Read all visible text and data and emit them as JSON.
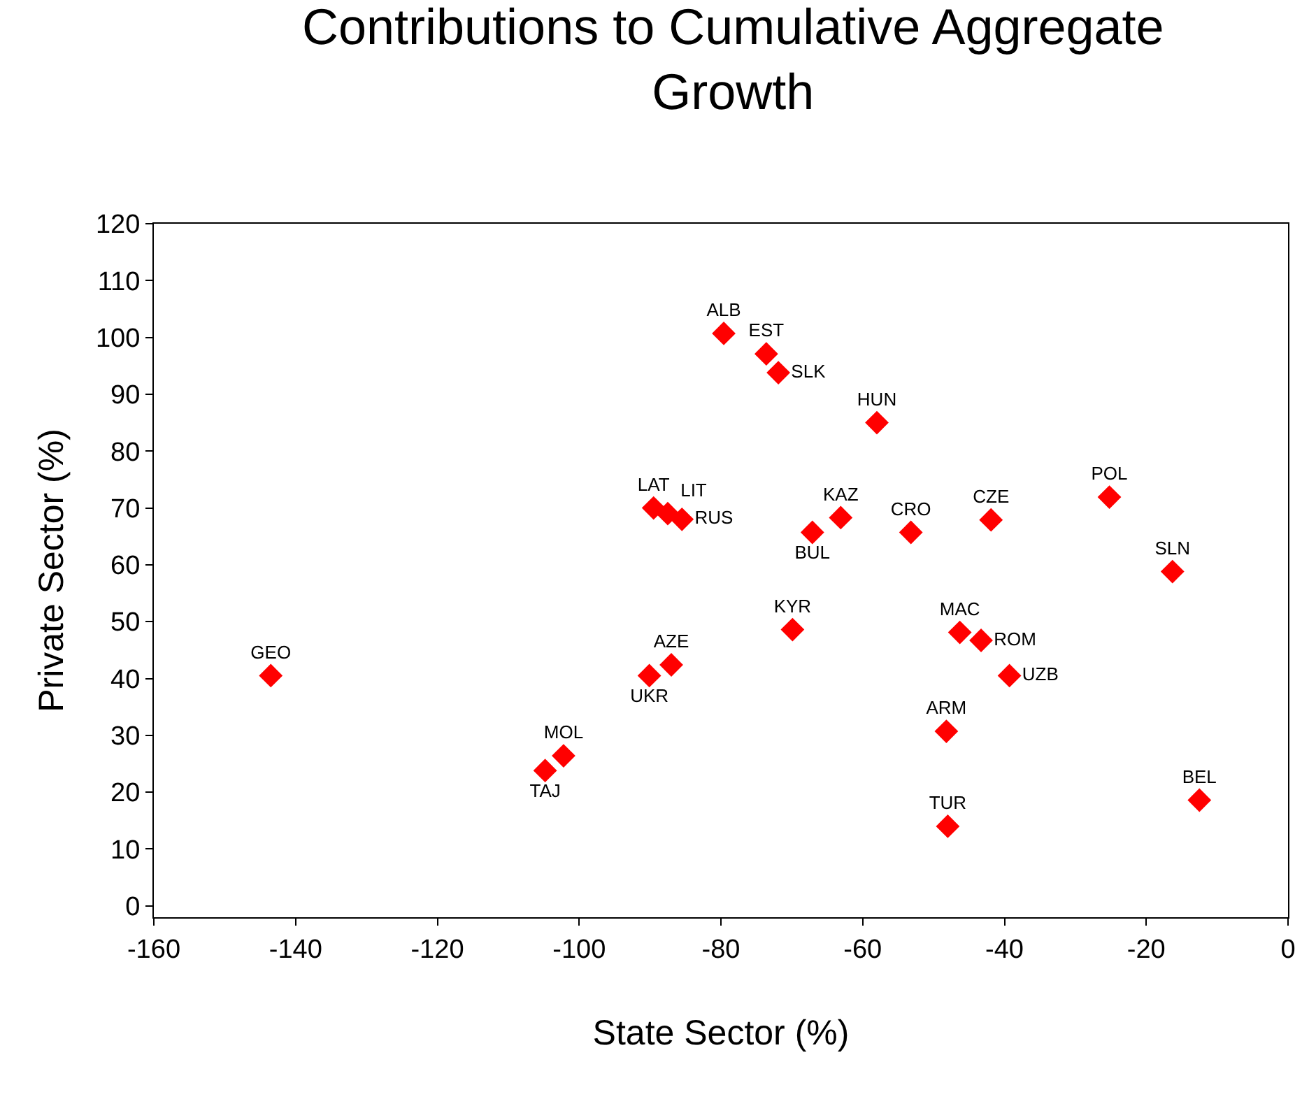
{
  "chart_data": {
    "type": "scatter",
    "title": "Contributions to Cumulative Aggregate Growth",
    "xlabel": "State Sector (%)",
    "ylabel": "Private Sector (%)",
    "x": [
      -143.5,
      -104.8,
      -102.2,
      -90.1,
      -87,
      -89.5,
      -87.5,
      -85.5,
      -79.6,
      -73.6,
      -71.9,
      -58,
      -67.1,
      -63.1,
      -69.9,
      -53.2,
      -41.9,
      -46.3,
      -43.3,
      -39.3,
      -48.2,
      -48,
      -25.2,
      -16.3,
      -12.5
    ],
    "values": [
      40.5,
      23.8,
      26.4,
      40.5,
      42.4,
      70,
      69,
      68,
      100.7,
      97.1,
      93.8,
      85,
      65.7,
      68.3,
      48.6,
      65.7,
      67.9,
      48.1,
      46.7,
      40.5,
      30.7,
      14,
      71.9,
      58.8,
      18.6
    ],
    "value_labels": [
      "GEO",
      "TAJ",
      "MOL",
      "UKR",
      "AZE",
      "LAT",
      "LIT",
      "RUS",
      "ALB",
      "EST",
      "SLK",
      "HUN",
      "BUL",
      "KAZ",
      "KYR",
      "CRO",
      "CZE",
      "MAC",
      "ROM",
      "UZB",
      "ARM",
      "TUR",
      "POL",
      "SLN",
      "BEL"
    ],
    "color": "#ff0000",
    "marker": "diamond",
    "legend": false,
    "xlim": [
      -160,
      0
    ],
    "xticks": [
      -160,
      -140,
      -120,
      -100,
      -80,
      -60,
      -40,
      -20,
      0
    ],
    "ylim": [
      -2,
      120
    ],
    "yticks": [
      0,
      10,
      20,
      30,
      40,
      50,
      60,
      70,
      80,
      90,
      100,
      110,
      120
    ]
  }
}
